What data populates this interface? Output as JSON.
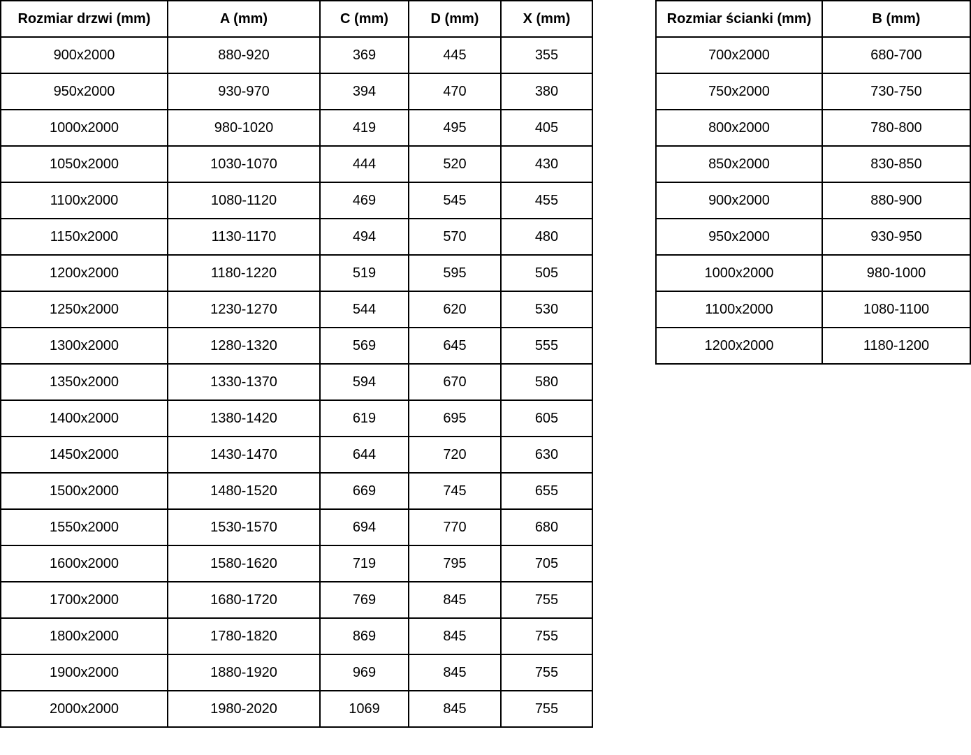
{
  "door_table": {
    "headers": [
      "Rozmiar drzwi (mm)",
      "A (mm)",
      "C (mm)",
      "D (mm)",
      "X (mm)"
    ],
    "rows": [
      [
        "900x2000",
        "880-920",
        "369",
        "445",
        "355"
      ],
      [
        "950x2000",
        "930-970",
        "394",
        "470",
        "380"
      ],
      [
        "1000x2000",
        "980-1020",
        "419",
        "495",
        "405"
      ],
      [
        "1050x2000",
        "1030-1070",
        "444",
        "520",
        "430"
      ],
      [
        "1100x2000",
        "1080-1120",
        "469",
        "545",
        "455"
      ],
      [
        "1150x2000",
        "1130-1170",
        "494",
        "570",
        "480"
      ],
      [
        "1200x2000",
        "1180-1220",
        "519",
        "595",
        "505"
      ],
      [
        "1250x2000",
        "1230-1270",
        "544",
        "620",
        "530"
      ],
      [
        "1300x2000",
        "1280-1320",
        "569",
        "645",
        "555"
      ],
      [
        "1350x2000",
        "1330-1370",
        "594",
        "670",
        "580"
      ],
      [
        "1400x2000",
        "1380-1420",
        "619",
        "695",
        "605"
      ],
      [
        "1450x2000",
        "1430-1470",
        "644",
        "720",
        "630"
      ],
      [
        "1500x2000",
        "1480-1520",
        "669",
        "745",
        "655"
      ],
      [
        "1550x2000",
        "1530-1570",
        "694",
        "770",
        "680"
      ],
      [
        "1600x2000",
        "1580-1620",
        "719",
        "795",
        "705"
      ],
      [
        "1700x2000",
        "1680-1720",
        "769",
        "845",
        "755"
      ],
      [
        "1800x2000",
        "1780-1820",
        "869",
        "845",
        "755"
      ],
      [
        "1900x2000",
        "1880-1920",
        "969",
        "845",
        "755"
      ],
      [
        "2000x2000",
        "1980-2020",
        "1069",
        "845",
        "755"
      ]
    ]
  },
  "wall_table": {
    "headers": [
      "Rozmiar ścianki (mm)",
      "B (mm)"
    ],
    "rows": [
      [
        "700x2000",
        "680-700"
      ],
      [
        "750x2000",
        "730-750"
      ],
      [
        "800x2000",
        "780-800"
      ],
      [
        "850x2000",
        "830-850"
      ],
      [
        "900x2000",
        "880-900"
      ],
      [
        "950x2000",
        "930-950"
      ],
      [
        "1000x2000",
        "980-1000"
      ],
      [
        "1100x2000",
        "1080-1100"
      ],
      [
        "1200x2000",
        "1180-1200"
      ]
    ]
  },
  "colors": {
    "border": "#000000",
    "text": "#000000",
    "background": "#ffffff"
  }
}
